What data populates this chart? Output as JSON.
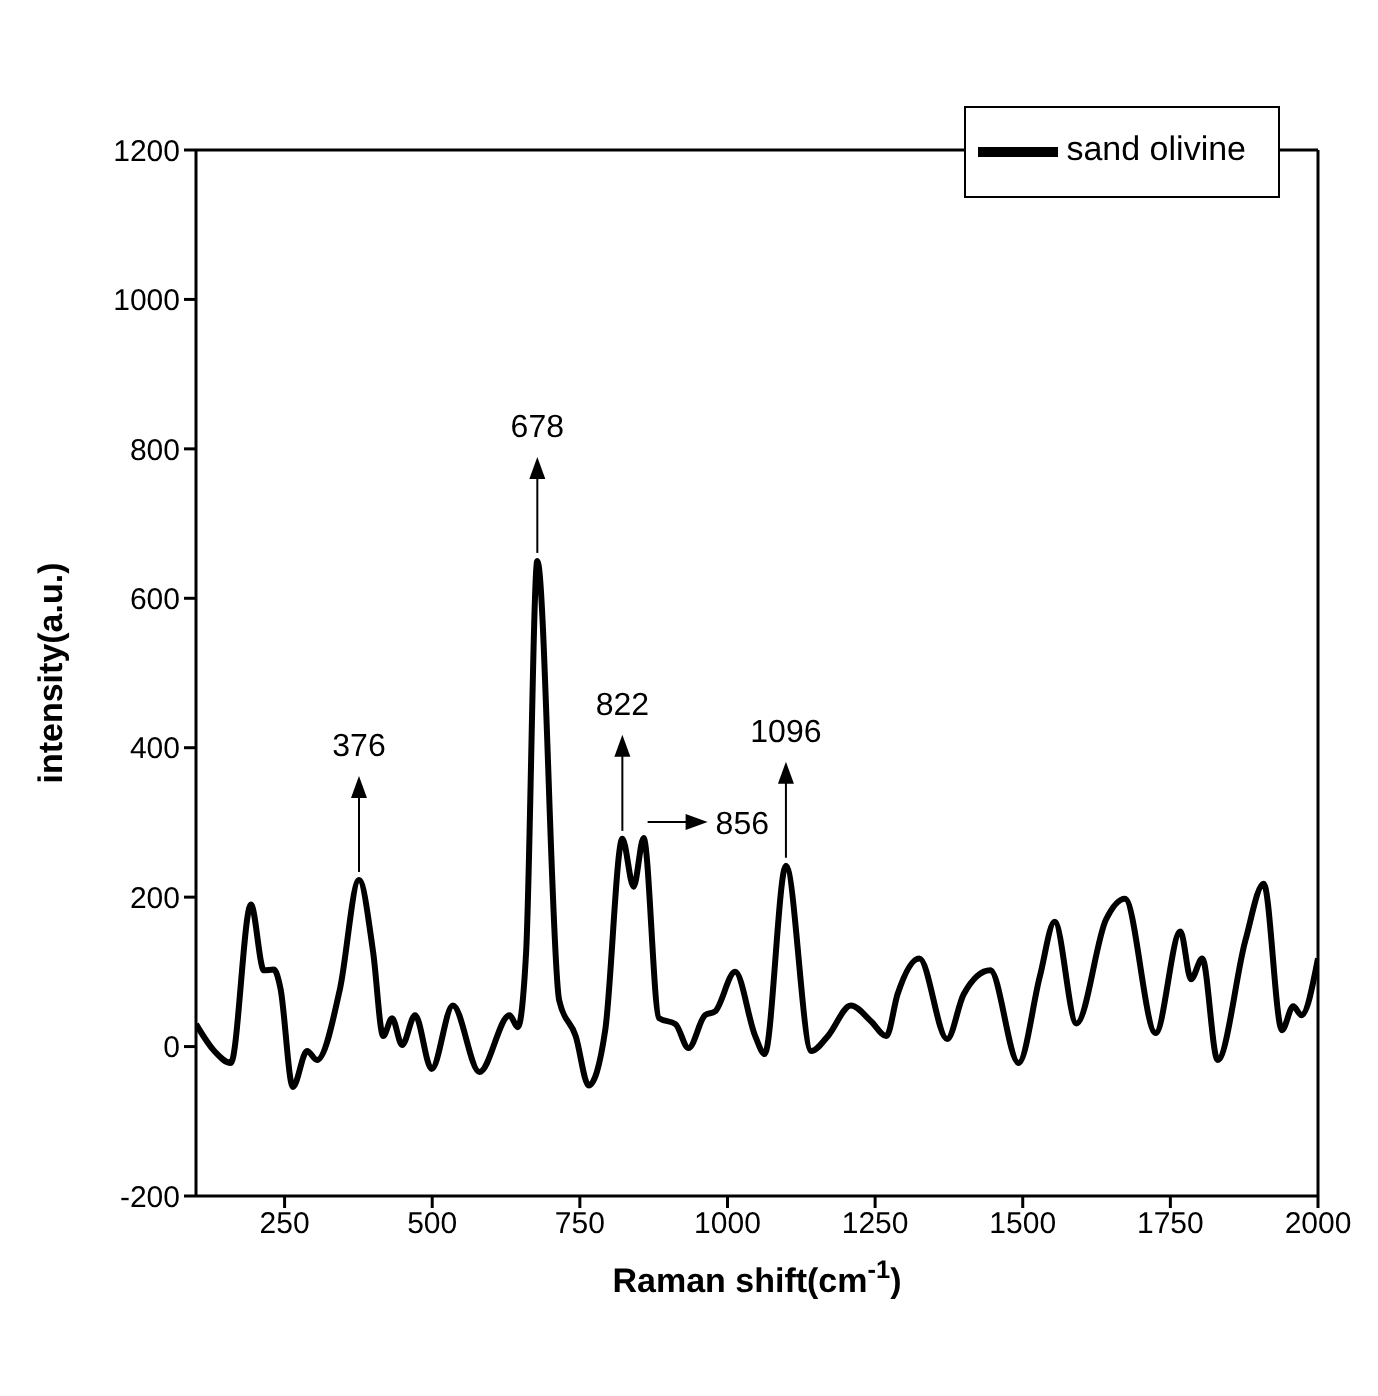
{
  "chart_data": {
    "type": "line",
    "xlabel": "Raman shift(cm$^{-1}$)",
    "ylabel": "intensity(a.u.)",
    "xlim": [
      100,
      2000
    ],
    "xticks": [
      250,
      500,
      750,
      1000,
      1250,
      1500,
      1750,
      2000
    ],
    "ylim": [
      -200,
      1200
    ],
    "yticks": [
      -200,
      0,
      200,
      400,
      600,
      800,
      1000,
      1200
    ],
    "grid": false,
    "legend": "top right",
    "line_style": "solid",
    "marker": "none",
    "x": [
      100,
      131,
      159,
      193,
      215,
      232,
      243,
      264,
      288,
      305,
      344,
      376,
      400,
      417,
      432,
      449,
      471,
      499,
      535,
      580,
      631,
      645,
      659,
      678,
      715,
      743,
      765,
      793,
      822,
      841,
      858,
      884,
      912,
      934,
      962,
      979,
      1013,
      1047,
      1063,
      1099,
      1142,
      1170,
      1209,
      1243,
      1269,
      1288,
      1325,
      1372,
      1400,
      1445,
      1493,
      1529,
      1554,
      1591,
      1641,
      1673,
      1725,
      1767,
      1785,
      1804,
      1830,
      1877,
      1908,
      1939,
      1958,
      1972,
      2000
    ],
    "series": [
      {
        "name": "sand olivine",
        "color": "#000000",
        "values": [
          30,
          -6,
          -22,
          190,
          102,
          103,
          78,
          -54,
          -6,
          -18,
          78,
          223,
          126,
          14,
          38,
          2,
          42,
          -30,
          55,
          -34,
          42,
          26,
          126,
          650,
          62,
          14,
          -52,
          22,
          278,
          214,
          279,
          38,
          30,
          -2,
          42,
          47,
          100,
          14,
          -10,
          242,
          -6,
          14,
          55,
          34,
          14,
          70,
          118,
          10,
          70,
          102,
          -22,
          94,
          167,
          31,
          170,
          198,
          18,
          154,
          90,
          118,
          -18,
          142,
          218,
          22,
          54,
          42,
          118
        ]
      }
    ],
    "annotations": [
      {
        "text": "376",
        "x": 376,
        "y": 223
      },
      {
        "text": "678",
        "x": 678,
        "y": 650
      },
      {
        "text": "822",
        "x": 822,
        "y": 278
      },
      {
        "text": "856",
        "x": 858,
        "y": 279
      },
      {
        "text": "1096",
        "x": 1099,
        "y": 242
      }
    ]
  }
}
